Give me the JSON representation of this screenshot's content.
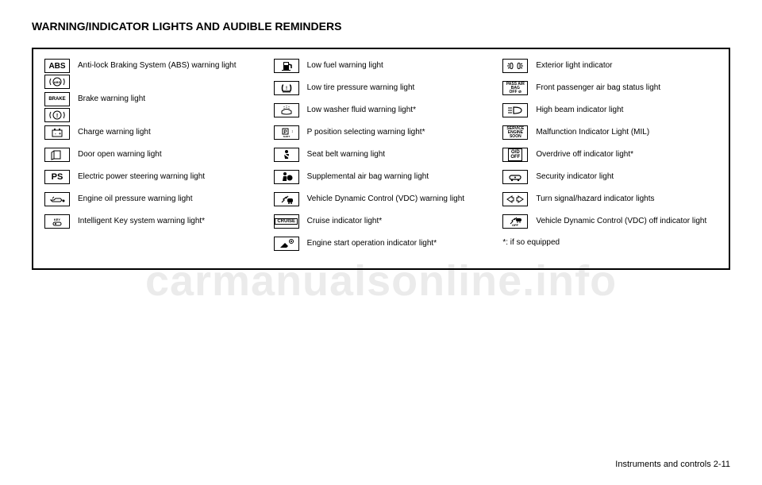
{
  "heading": "WARNING/INDICATOR LIGHTS AND\nAUDIBLE REMINDERS",
  "columns": [
    {
      "items": [
        {
          "icon_keys": [
            "abs_text",
            "abs_circle"
          ],
          "label": "Anti-lock Braking System (ABS) warning light"
        },
        {
          "icon_keys": [
            "brake_word",
            "brake_circle"
          ],
          "label": "Brake warning light"
        },
        {
          "icon_keys": [
            "battery"
          ],
          "label": "Charge warning light"
        },
        {
          "icon_keys": [
            "door"
          ],
          "label": "Door open warning light"
        },
        {
          "icon_keys": [
            "ps_text"
          ],
          "label": "Electric power steering warning light"
        },
        {
          "icon_keys": [
            "oil"
          ],
          "label": "Engine oil pressure warning light"
        },
        {
          "icon_keys": [
            "key"
          ],
          "label": "Intelligent Key system warning light*"
        }
      ]
    },
    {
      "items": [
        {
          "icon_keys": [
            "fuel"
          ],
          "label": "Low fuel warning light"
        },
        {
          "icon_keys": [
            "tire"
          ],
          "label": "Low tire pressure warning light"
        },
        {
          "icon_keys": [
            "washer"
          ],
          "label": "Low washer fluid warning light*"
        },
        {
          "icon_keys": [
            "pshift"
          ],
          "label": "P position selecting warning light*"
        },
        {
          "icon_keys": [
            "seatbelt"
          ],
          "label": "Seat belt warning light"
        },
        {
          "icon_keys": [
            "airbag"
          ],
          "label": "Supplemental air bag warning light"
        },
        {
          "icon_keys": [
            "vdc"
          ],
          "label": "Vehicle Dynamic Control (VDC) warning light"
        },
        {
          "icon_keys": [
            "cruise"
          ],
          "label": "Cruise indicator light*"
        },
        {
          "icon_keys": [
            "enginestart"
          ],
          "label": "Engine start operation indicator light*"
        }
      ]
    },
    {
      "items": [
        {
          "icon_keys": [
            "extlight"
          ],
          "label": "Exterior light indicator"
        },
        {
          "icon_keys": [
            "passairbag"
          ],
          "label": "Front passenger air bag status light"
        },
        {
          "icon_keys": [
            "highbeam"
          ],
          "label": "High beam indicator light"
        },
        {
          "icon_keys": [
            "mil"
          ],
          "label": "Malfunction Indicator Light (MIL)"
        },
        {
          "icon_keys": [
            "odoff"
          ],
          "label": "Overdrive off indicator light*"
        },
        {
          "icon_keys": [
            "security"
          ],
          "label": "Security indicator light"
        },
        {
          "icon_keys": [
            "turn"
          ],
          "label": "Turn signal/hazard indicator lights"
        },
        {
          "icon_keys": [
            "vdcoff"
          ],
          "label": "Vehicle Dynamic Control (VDC) off indicator light"
        }
      ],
      "footnote": "*: if so equipped"
    }
  ],
  "footer": "Instruments and controls 2-11",
  "watermark": "carmanualsonline.info",
  "icons": {
    "abs_text": {
      "kind": "text",
      "class": "abs-text",
      "text": "ABS"
    },
    "abs_circle": {
      "kind": "svg",
      "svg": "<svg viewBox='0 0 24 14'><circle cx='12' cy='7' r='5' fill='none' stroke='#000' stroke-width='1'/><text x='12' y='9' font-size='4' text-anchor='middle' font-weight='bold'>ABS</text><path d='M4 3 A8 8 0 0 0 4 11' fill='none' stroke='#000' stroke-width='1'/><path d='M20 3 A8 8 0 0 1 20 11' fill='none' stroke='#000' stroke-width='1'/></svg>"
    },
    "brake_word": {
      "kind": "text",
      "class": "brake-text",
      "text": "BRAKE"
    },
    "brake_circle": {
      "kind": "svg",
      "svg": "<svg viewBox='0 0 24 14'><circle cx='12' cy='7' r='5' fill='none' stroke='#000' stroke-width='1'/><text x='12' y='10' font-size='7' text-anchor='middle' font-weight='bold'>!</text><path d='M4 3 A8 8 0 0 0 4 11' fill='none' stroke='#000' stroke-width='1'/><path d='M20 3 A8 8 0 0 1 20 11' fill='none' stroke='#000' stroke-width='1'/></svg>"
    },
    "battery": {
      "kind": "svg",
      "svg": "<svg viewBox='0 0 24 14'><rect x='6' y='4' width='12' height='8' fill='none' stroke='#000' stroke-width='1'/><rect x='8' y='2' width='2' height='2' fill='#000'/><rect x='14' y='2' width='2' height='2' fill='#000'/><text x='9' y='10' font-size='5'>-</text><text x='14' y='10' font-size='5'>+</text></svg>"
    },
    "door": {
      "kind": "svg",
      "svg": "<svg viewBox='0 0 24 14'><rect x='8' y='2' width='8' height='10' fill='none' stroke='#000' stroke-width='1'/><path d='M8 2 L5 4 L5 13 L8 12' fill='none' stroke='#000' stroke-width='1'/></svg>"
    },
    "ps_text": {
      "kind": "text",
      "class": "ps-text",
      "text": "PS"
    },
    "oil": {
      "kind": "svg",
      "svg": "<svg viewBox='0 0 24 14'><path d='M4 8 L8 8 L10 6 L16 6 L18 8 L16 10 L6 10 Z' fill='none' stroke='#000' stroke-width='1'/><circle cx='20' cy='9' r='1.5' fill='#000'/><path d='M6 6 L8 4' stroke='#000' stroke-width='1'/></svg>"
    },
    "key": {
      "kind": "svg",
      "svg": "<svg viewBox='0 0 24 14'><text x='12' y='6' font-size='4' text-anchor='middle'>KEY</text><rect x='7' y='8' width='10' height='4' rx='2' fill='none' stroke='#000' stroke-width='1'/><circle cx='10' cy='10' r='1' fill='#000'/></svg>"
    },
    "fuel": {
      "kind": "svg",
      "svg": "<svg viewBox='0 0 24 14'><rect x='8' y='2' width='7' height='10' fill='#000'/><rect x='9' y='3' width='5' height='3' fill='#fff'/><path d='M15 5 L18 6 L18 10' fill='none' stroke='#000' stroke-width='1.5'/><rect x='6' y='12' width='11' height='1' fill='#000'/></svg>"
    },
    "tire": {
      "kind": "svg",
      "svg": "<svg viewBox='0 0 24 14'><path d='M8 3 C6 3 6 11 8 11 L16 11 C18 11 18 3 16 3' fill='none' stroke='#000' stroke-width='1.5'/><text x='12' y='9' font-size='6' text-anchor='middle' font-weight='bold'>!</text><path d='M8 11 L8 13 M10 11 L10 13 M12 11 L12 13 M14 11 L14 13 M16 11 L16 13' stroke='#000' stroke-width='0.8'/></svg>"
    },
    "washer": {
      "kind": "svg",
      "svg": "<svg viewBox='0 0 24 14'><path d='M6 8 Q12 3 18 8 L18 11 Q12 13 6 11 Z' fill='none' stroke='#000' stroke-width='1'/><path d='M9 5 L9 2 M12 4 L12 1 M15 5 L15 2' stroke='#000' stroke-width='0.8' stroke-dasharray='1 1'/></svg>"
    },
    "pshift": {
      "kind": "svg",
      "svg": "<svg viewBox='0 0 24 14'><rect x='7' y='2' width='7' height='7' fill='none' stroke='#000' stroke-width='1'/><text x='10.5' y='8' font-size='6' text-anchor='middle' font-weight='bold'>P</text><text x='18' y='7' font-size='5' font-weight='bold'>↕</text><text x='12' y='13' font-size='3' text-anchor='middle'>SHIFT</text></svg>"
    },
    "seatbelt": {
      "kind": "svg",
      "svg": "<svg viewBox='0 0 24 14'><circle cx='12' cy='3' r='2' fill='#000'/><path d='M9 6 L15 6 L14 12 L10 12 Z' fill='#000'/><path d='M8 5 L16 11' stroke='#fff' stroke-width='1.5'/></svg>"
    },
    "airbag": {
      "kind": "svg",
      "svg": "<svg viewBox='0 0 24 14'><circle cx='10' cy='3' r='2' fill='#000'/><path d='M8 6 L12 6 L12 12 L7 12 Z' fill='#000'/><circle cx='16' cy='8' r='3.5' fill='#000'/></svg>"
    },
    "vdc": {
      "kind": "svg",
      "svg": "<svg viewBox='0 0 24 14'><path d='M6 11 L9 8 L8 7 L12 4 L11 6 L14 3' fill='none' stroke='#000' stroke-width='1.2'/><rect x='13' y='6' width='7' height='5' rx='2' fill='#000'/><circle cx='15' cy='12' r='1' fill='#000'/><circle cx='18' cy='12' r='1' fill='#000'/></svg>"
    },
    "cruise": {
      "kind": "text",
      "class": "cruise-text",
      "text": "CRUISE"
    },
    "enginestart": {
      "kind": "svg",
      "svg": "<svg viewBox='0 0 24 14'><path d='M4 12 L10 6 L14 10 L12 12 Z' fill='#000'/><circle cx='18' cy='4' r='2.5' fill='none' stroke='#000' stroke-width='1'/><circle cx='18' cy='4' r='1' fill='#000'/></svg>"
    },
    "extlight": {
      "kind": "svg",
      "svg": "<svg viewBox='0 0 24 14'><path d='M2 7 L5 7 M3 4 L5 5 M3 10 L5 9' stroke='#000' stroke-width='1'/><path d='M6 4 Q9 2 9 7 Q9 12 6 10 Z' fill='none' stroke='#000' stroke-width='1'/><path d='M15 4 Q18 2 18 7 Q18 12 15 10 Z' fill='none' stroke='#000' stroke-width='1' transform='scale(-1,1) translate(-33,0)'/><path d='M22 7 L19 7 M21 4 L19 5 M21 10 L19 9' stroke='#000' stroke-width='1'/></svg>"
    },
    "passairbag": {
      "kind": "text",
      "class": "multiline-text",
      "text": "PASS AIR BAG\nOFF ⊘"
    },
    "highbeam": {
      "kind": "svg",
      "svg": "<svg viewBox='0 0 24 14'><path d='M3 4 L8 4 M3 7 L8 7 M3 10 L8 10' stroke='#000' stroke-width='1'/><path d='M10 3 L10 11 Q20 11 20 7 Q20 3 10 3 Z' fill='none' stroke='#000' stroke-width='1.2'/></svg>"
    },
    "mil": {
      "kind": "text",
      "class": "multiline-text",
      "text": "SERVICE\nENGINE\nSOON"
    },
    "odoff": {
      "kind": "text",
      "class": "od-text",
      "text": "O/D\nOFF",
      "boxed": true
    },
    "security": {
      "kind": "svg",
      "svg": "<svg viewBox='0 0 24 14'><rect x='5' y='5' width='14' height='5' rx='2.5' fill='none' stroke='#000' stroke-width='1.2'/><circle cx='8' cy='11' r='1.2' fill='#000'/><circle cx='16' cy='11' r='1.2' fill='#000'/><circle cx='12' cy='7.5' r='1' fill='#000'/></svg>"
    },
    "turn": {
      "kind": "svg",
      "svg": "<svg viewBox='0 0 24 14'><path d='M2 7 L8 3 L8 5 L10 5 L10 9 L8 9 L8 11 Z' fill='none' stroke='#000' stroke-width='1'/><path d='M22 7 L16 3 L16 5 L14 5 L14 9 L16 9 L16 11 Z' fill='none' stroke='#000' stroke-width='1'/></svg>"
    },
    "vdcoff": {
      "kind": "svg",
      "svg": "<svg viewBox='0 0 24 14'><path d='M6 8 L9 5 L8 4 L12 1 L11 3 L14 0' fill='none' stroke='#000' stroke-width='1' transform='translate(0,2)'/><rect x='13' y='3' width='7' height='4' rx='2' fill='#000'/><circle cx='15' cy='8' r='0.8' fill='#000'/><circle cx='18' cy='8' r='0.8' fill='#000'/><text x='12' y='13' font-size='4' text-anchor='middle' font-weight='bold'>OFF</text></svg>"
    }
  }
}
